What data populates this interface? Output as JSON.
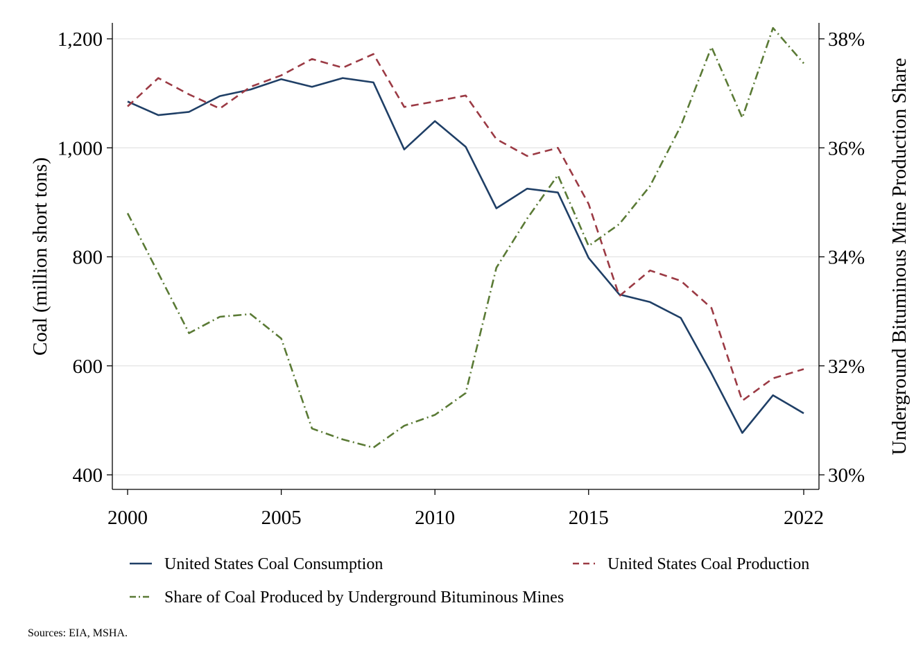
{
  "chart_data": {
    "type": "line",
    "x": [
      2000,
      2001,
      2002,
      2003,
      2004,
      2005,
      2006,
      2007,
      2008,
      2009,
      2010,
      2011,
      2012,
      2013,
      2014,
      2015,
      2016,
      2017,
      2018,
      2019,
      2020,
      2021,
      2022
    ],
    "x_ticks": [
      2000,
      2005,
      2010,
      2015,
      2022
    ],
    "x_tick_labels": [
      "2000",
      "2005",
      "2010",
      "2015",
      "2022"
    ],
    "xlim": [
      2000,
      2022
    ],
    "ylabel_left": "Coal (million short tons)",
    "ylim_left": [
      400,
      1200
    ],
    "y_ticks_left": [
      400,
      600,
      800,
      1000,
      1200
    ],
    "y_tick_labels_left": [
      "400",
      "600",
      "800",
      "1,000",
      "1,200"
    ],
    "ylabel_right": "Underground Bituminous Mine Production Share",
    "ylim_right": [
      30,
      38
    ],
    "y_ticks_right": [
      30,
      32,
      34,
      36,
      38
    ],
    "y_tick_labels_right": [
      "30%",
      "32%",
      "34%",
      "36%",
      "38%"
    ],
    "grid": true,
    "legend_placement": "bottom",
    "series": [
      {
        "name": "United States Coal Consumption",
        "axis": "left",
        "style": "solid",
        "color": "#1f3f66",
        "values": [
          1085,
          1060,
          1066,
          1095,
          1107,
          1126,
          1112,
          1128,
          1120,
          997,
          1049,
          1002,
          889,
          925,
          918,
          798,
          731,
          717,
          688,
          586,
          477,
          546,
          513
        ]
      },
      {
        "name": "United States Coal Production",
        "axis": "left",
        "style": "dashed",
        "color": "#9b3a44",
        "values": [
          1076,
          1128,
          1098,
          1072,
          1112,
          1133,
          1163,
          1147,
          1172,
          1075,
          1085,
          1096,
          1016,
          985,
          1000,
          897,
          728,
          775,
          756,
          706,
          536,
          577,
          594
        ]
      },
      {
        "name": "Share of Coal Produced by Underground Bituminous Mines",
        "axis": "right",
        "style": "dashdot",
        "color": "#5a7a35",
        "values": [
          34.8,
          33.7,
          32.6,
          32.9,
          32.95,
          32.5,
          30.85,
          30.65,
          30.5,
          30.9,
          31.1,
          31.5,
          33.8,
          34.7,
          35.5,
          34.2,
          34.6,
          35.3,
          36.4,
          37.85,
          36.55,
          38.2,
          37.55
        ]
      }
    ]
  },
  "footer": {
    "source": "Sources: EIA, MSHA."
  }
}
